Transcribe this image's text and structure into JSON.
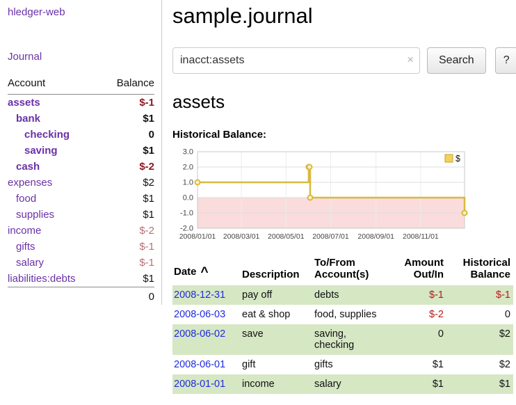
{
  "app": {
    "title": "hledger-web"
  },
  "colors": {
    "accent_purple": "#6a31a8",
    "negative_strong": "#8c1a1f",
    "negative_soft": "#b86f77",
    "negative_table": "#b51a1a",
    "date_link_blue": "#1f2bdd",
    "row_green": "#d6e7c4",
    "chart_line_gold": "#d9b93e",
    "chart_negative_pink": "#fadcdc"
  },
  "sidebar": {
    "journal_link": "Journal",
    "table": {
      "account_header": "Account",
      "balance_header": "Balance",
      "rows": [
        {
          "name": "assets",
          "balance": "$-1",
          "indent": 0,
          "bold": true,
          "neg": "strong"
        },
        {
          "name": "bank",
          "balance": "$1",
          "indent": 1,
          "bold": true,
          "neg": ""
        },
        {
          "name": "checking",
          "balance": "0",
          "indent": 2,
          "bold": true,
          "neg": ""
        },
        {
          "name": "saving",
          "balance": "$1",
          "indent": 2,
          "bold": true,
          "neg": ""
        },
        {
          "name": "cash",
          "balance": "$-2",
          "indent": 1,
          "bold": true,
          "neg": "strong"
        },
        {
          "name": "expenses",
          "balance": "$2",
          "indent": 0,
          "bold": false,
          "neg": ""
        },
        {
          "name": "food",
          "balance": "$1",
          "indent": 1,
          "bold": false,
          "neg": ""
        },
        {
          "name": "supplies",
          "balance": "$1",
          "indent": 1,
          "bold": false,
          "neg": ""
        },
        {
          "name": "income",
          "balance": "$-2",
          "indent": 0,
          "bold": false,
          "neg": "soft"
        },
        {
          "name": "gifts",
          "balance": "$-1",
          "indent": 1,
          "bold": false,
          "neg": "soft"
        },
        {
          "name": "salary",
          "balance": "$-1",
          "indent": 1,
          "bold": false,
          "neg": "soft"
        },
        {
          "name": "liabilities:debts",
          "balance": "$1",
          "indent": 0,
          "bold": false,
          "neg": ""
        }
      ],
      "total": "0"
    }
  },
  "main": {
    "title": "sample.journal",
    "search": {
      "value": "inacct:assets",
      "clear_icon": "×",
      "button_label": "Search",
      "help_label": "?"
    },
    "section_title": "assets",
    "chart_label": "Historical Balance:"
  },
  "chart_data": {
    "type": "line",
    "title": "Historical Balance",
    "step": true,
    "grid": true,
    "legend_position": "top-right",
    "legend": [
      {
        "label": "$",
        "color": "#f0d25c"
      }
    ],
    "ylim": [
      -2.0,
      3.0
    ],
    "yticks": [
      3.0,
      2.0,
      1.0,
      0.0,
      -1.0,
      -2.0
    ],
    "x_start": "2008-01-01",
    "x_end": "2008-12-31",
    "xticks": [
      {
        "date": "2008-01-01",
        "label": "2008/01/01"
      },
      {
        "date": "2008-03-01",
        "label": "2008/03/01"
      },
      {
        "date": "2008-05-01",
        "label": "2008/05/01"
      },
      {
        "date": "2008-07-01",
        "label": "2008/07/01"
      },
      {
        "date": "2008-09-01",
        "label": "2008/09/01"
      },
      {
        "date": "2008-11-01",
        "label": "2008/11/01"
      }
    ],
    "series": [
      {
        "name": "$",
        "points": [
          {
            "date": "2008-01-01",
            "value": 1
          },
          {
            "date": "2008-06-01",
            "value": 2
          },
          {
            "date": "2008-06-02",
            "value": 2
          },
          {
            "date": "2008-06-03",
            "value": 0
          },
          {
            "date": "2008-12-31",
            "value": -1
          }
        ]
      }
    ],
    "line_color": "#d9b93e",
    "marker_fill": "#faf0c8",
    "negative_region_color": "#fadcdc"
  },
  "register": {
    "headers": {
      "date": "Date",
      "sort_icon": "^",
      "description": "Description",
      "accounts": "To/From Account(s)",
      "amount": "Amount Out/In",
      "balance": "Historical Balance"
    },
    "rows": [
      {
        "date": "2008-12-31",
        "description": "pay off",
        "accounts": "debts",
        "amount": "$-1",
        "balance": "$-1",
        "amount_negative": true,
        "balance_negative": true,
        "shaded": true
      },
      {
        "date": "2008-06-03",
        "description": "eat & shop",
        "accounts": "food, supplies",
        "amount": "$-2",
        "balance": "0",
        "amount_negative": true,
        "balance_negative": false,
        "shaded": false
      },
      {
        "date": "2008-06-02",
        "description": "save",
        "accounts": "saving, checking",
        "amount": "0",
        "balance": "$2",
        "amount_negative": false,
        "balance_negative": false,
        "shaded": true
      },
      {
        "date": "2008-06-01",
        "description": "gift",
        "accounts": "gifts",
        "amount": "$1",
        "balance": "$2",
        "amount_negative": false,
        "balance_negative": false,
        "shaded": false
      },
      {
        "date": "2008-01-01",
        "description": "income",
        "accounts": "salary",
        "amount": "$1",
        "balance": "$1",
        "amount_negative": false,
        "balance_negative": false,
        "shaded": true
      }
    ]
  }
}
